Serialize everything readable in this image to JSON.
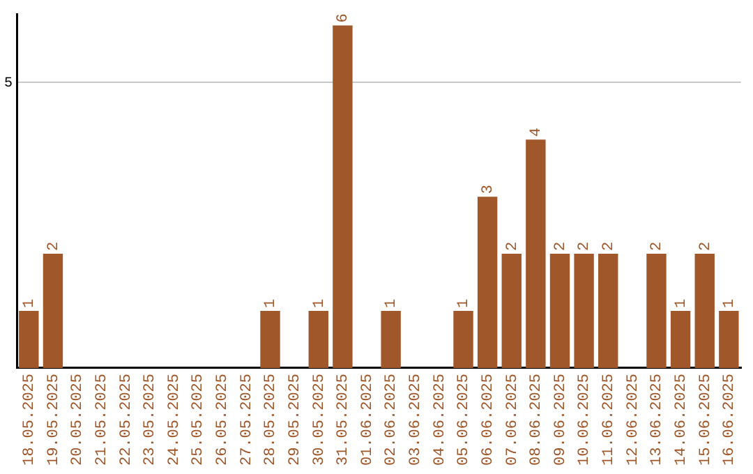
{
  "chart_data": {
    "type": "bar",
    "categories": [
      "18.05.2025",
      "19.05.2025",
      "20.05.2025",
      "21.05.2025",
      "22.05.2025",
      "23.05.2025",
      "24.05.2025",
      "25.05.2025",
      "26.05.2025",
      "27.05.2025",
      "28.05.2025",
      "29.05.2025",
      "30.05.2025",
      "31.05.2025",
      "01.06.2025",
      "02.06.2025",
      "03.06.2025",
      "04.06.2025",
      "05.06.2025",
      "06.06.2025",
      "07.06.2025",
      "08.06.2025",
      "09.06.2025",
      "10.06.2025",
      "11.06.2025",
      "12.06.2025",
      "13.06.2025",
      "14.06.2025",
      "15.06.2025",
      "16.06.2025"
    ],
    "values": [
      1,
      2,
      0,
      0,
      0,
      0,
      0,
      0,
      0,
      0,
      1,
      0,
      1,
      6,
      0,
      1,
      0,
      0,
      1,
      3,
      2,
      4,
      2,
      2,
      2,
      0,
      2,
      1,
      2,
      1
    ],
    "value_labels": [
      "1",
      "2",
      null,
      null,
      null,
      null,
      null,
      null,
      null,
      null,
      "1",
      null,
      "1",
      "6",
      null,
      "1",
      null,
      null,
      "1",
      "3",
      "2",
      "4",
      "2",
      "2",
      "2",
      null,
      "2",
      "1",
      "2",
      "1"
    ],
    "color": "#a0572a",
    "ylim": [
      0,
      6.2
    ],
    "yticks": [
      5
    ],
    "grid": "y",
    "legend": false
  }
}
